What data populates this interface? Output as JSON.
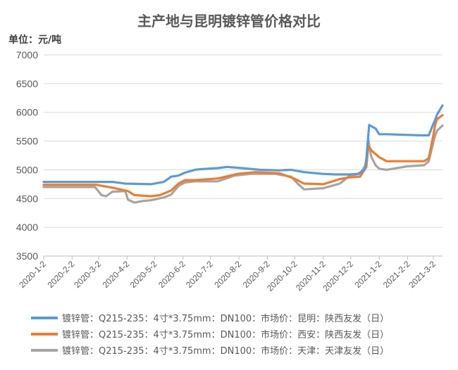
{
  "chart_data": {
    "type": "line",
    "title": "主产地与昆明镀锌管价格对比",
    "ylabel": "单位：元/吨",
    "ylim": [
      3500,
      7000
    ],
    "yticks": [
      3500,
      4000,
      4500,
      5000,
      5500,
      6000,
      6500,
      7000
    ],
    "xlim": [
      "2020-01-02",
      "2021-03-12"
    ],
    "xticks": [
      "2020-1-2",
      "2020-2-2",
      "2020-3-2",
      "2020-4-2",
      "2020-5-2",
      "2020-6-2",
      "2020-7-2",
      "2020-8-2",
      "2020-9-2",
      "2020-10-2",
      "2020-11-2",
      "2020-12-2",
      "2021-1-2",
      "2021-2-2",
      "2021-3-2"
    ],
    "legend_position": "bottom",
    "grid": true,
    "series": [
      {
        "name": "镀锌管：Q215-235：4寸*3.75mm：DN100：市场价：昆明：陕西友发（日）",
        "color": "#5b9bd5",
        "x": [
          "2020-01-02",
          "2020-03-17",
          "2020-03-31",
          "2020-04-28",
          "2020-05-12",
          "2020-05-20",
          "2020-05-28",
          "2020-06-04",
          "2020-06-15",
          "2020-06-20",
          "2020-06-29",
          "2020-07-10",
          "2020-07-20",
          "2020-08-05",
          "2020-08-25",
          "2020-09-15",
          "2020-09-28",
          "2020-10-12",
          "2020-11-01",
          "2020-11-15",
          "2020-12-01",
          "2020-12-10",
          "2020-12-17",
          "2020-12-19",
          "2020-12-22",
          "2020-12-29",
          "2021-01-02",
          "2021-01-10",
          "2021-02-15",
          "2021-02-25",
          "2021-03-02",
          "2021-03-04",
          "2021-03-06",
          "2021-03-12"
        ],
        "values": [
          4790,
          4790,
          4760,
          4750,
          4790,
          4880,
          4900,
          4950,
          5000,
          5010,
          5020,
          5030,
          5050,
          5030,
          5000,
          4990,
          5000,
          4960,
          4930,
          4920,
          4920,
          4930,
          5000,
          5200,
          5780,
          5720,
          5620,
          5620,
          5600,
          5600,
          5800,
          5870,
          5960,
          6120
        ]
      },
      {
        "name": "镀锌管：Q215-235：4寸*3.75mm：DN100：市场价：西安：陕西友发（日）",
        "color": "#ed7d31",
        "x": [
          "2020-01-02",
          "2020-02-28",
          "2020-03-17",
          "2020-04-03",
          "2020-04-10",
          "2020-04-28",
          "2020-05-08",
          "2020-05-20",
          "2020-05-28",
          "2020-06-04",
          "2020-06-15",
          "2020-07-10",
          "2020-08-01",
          "2020-08-20",
          "2020-09-15",
          "2020-10-01",
          "2020-10-12",
          "2020-11-02",
          "2020-11-20",
          "2020-12-01",
          "2020-12-12",
          "2020-12-19",
          "2020-12-21",
          "2020-12-25",
          "2021-01-02",
          "2021-01-10",
          "2021-02-20",
          "2021-02-25",
          "2021-03-02",
          "2021-03-04",
          "2021-03-06",
          "2021-03-12"
        ],
        "values": [
          4740,
          4740,
          4690,
          4630,
          4560,
          4540,
          4560,
          4640,
          4760,
          4820,
          4820,
          4850,
          4930,
          4960,
          4940,
          4850,
          4760,
          4750,
          4840,
          4870,
          4880,
          5050,
          5420,
          5330,
          5220,
          5150,
          5150,
          5200,
          5600,
          5780,
          5880,
          5950
        ]
      },
      {
        "name": "镀锌管：Q215-235：4寸*3.75mm：DN100：市场价：天津：天津友发（日）",
        "color": "#a5a5a5",
        "x": [
          "2020-01-02",
          "2020-02-27",
          "2020-03-05",
          "2020-03-10",
          "2020-03-17",
          "2020-03-31",
          "2020-04-03",
          "2020-04-10",
          "2020-04-20",
          "2020-04-28",
          "2020-05-12",
          "2020-05-20",
          "2020-05-28",
          "2020-06-04",
          "2020-06-15",
          "2020-07-10",
          "2020-07-28",
          "2020-08-15",
          "2020-09-10",
          "2020-09-28",
          "2020-10-05",
          "2020-10-12",
          "2020-11-02",
          "2020-11-20",
          "2020-12-01",
          "2020-12-12",
          "2020-12-19",
          "2020-12-21",
          "2020-12-24",
          "2020-12-29",
          "2021-01-02",
          "2021-01-10",
          "2021-02-01",
          "2021-02-20",
          "2021-02-25",
          "2021-03-02",
          "2021-03-04",
          "2021-03-06",
          "2021-03-12"
        ],
        "values": [
          4700,
          4700,
          4560,
          4540,
          4620,
          4630,
          4480,
          4430,
          4460,
          4470,
          4520,
          4570,
          4720,
          4780,
          4800,
          4800,
          4900,
          4930,
          4930,
          4880,
          4760,
          4660,
          4680,
          4760,
          4900,
          4930,
          5100,
          5540,
          5240,
          5080,
          5020,
          5000,
          5060,
          5080,
          5150,
          5480,
          5600,
          5680,
          5770
        ]
      }
    ]
  }
}
